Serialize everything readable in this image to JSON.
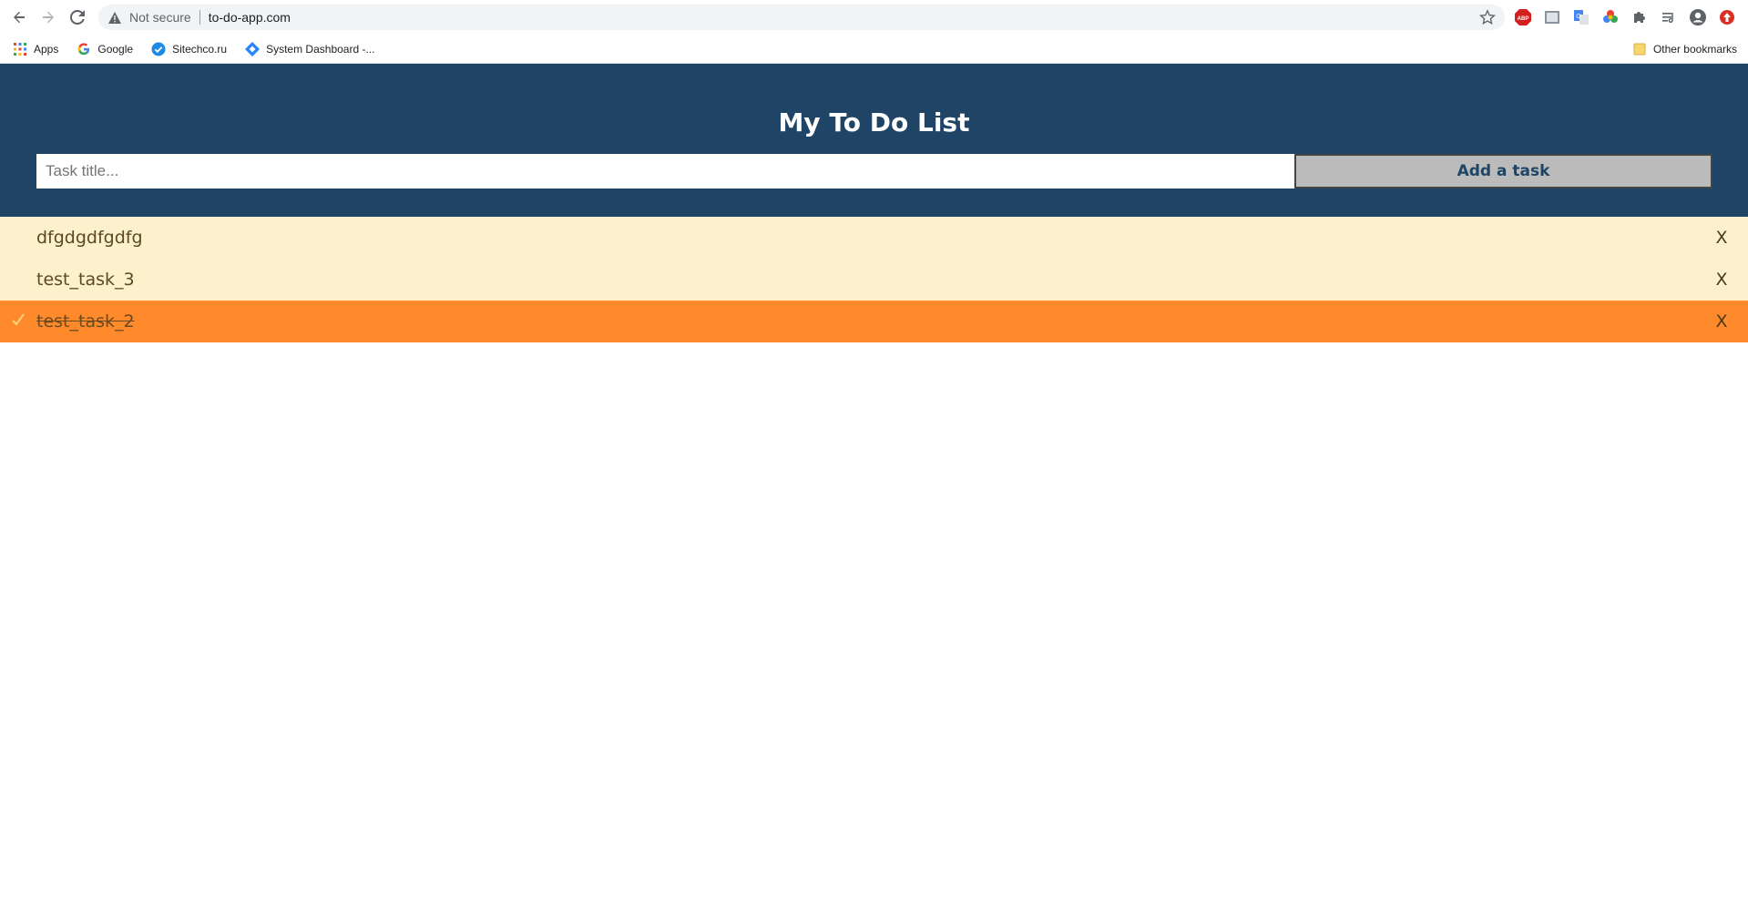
{
  "browser": {
    "not_secure": "Not secure",
    "url": "to-do-app.com",
    "bookmarks": [
      {
        "label": "Apps",
        "icon": "apps-grid-icon"
      },
      {
        "label": "Google",
        "icon": "google-icon"
      },
      {
        "label": "Sitechco.ru",
        "icon": "check-badge-icon"
      },
      {
        "label": "System Dashboard -...",
        "icon": "jira-icon"
      }
    ],
    "other_bookmarks": "Other bookmarks"
  },
  "app": {
    "title": "My To Do List",
    "input_placeholder": "Task title...",
    "input_value": "",
    "add_button": "Add a task",
    "close_symbol": "X",
    "colors": {
      "header": "#204466",
      "task_bg": "#fcf1cc",
      "task_checked_bg": "#ff8a2b",
      "button_bg": "#bbbbbb"
    },
    "tasks": [
      {
        "title": "dfgdgdfgdfg",
        "checked": false
      },
      {
        "title": "test_task_3",
        "checked": false
      },
      {
        "title": "test_task_2",
        "checked": true
      }
    ]
  }
}
